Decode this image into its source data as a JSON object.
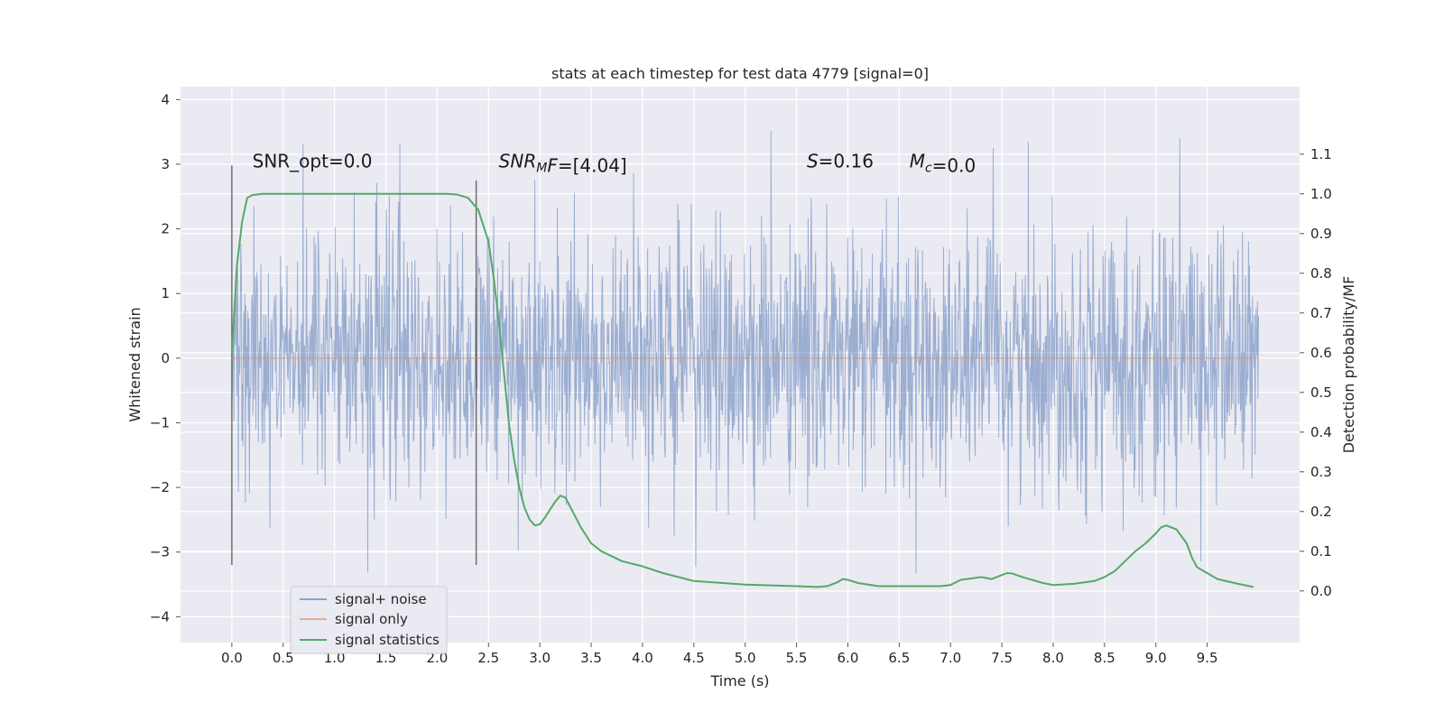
{
  "chart_data": {
    "type": "line",
    "title": "stats at each timestep for test data 4779 [signal=0]",
    "xlabel": "Time (s)",
    "ylabel": "Whitened strain",
    "y2label": "Detection probability/MF",
    "xlim": [
      -0.5,
      10.4
    ],
    "ylim": [
      -4.4,
      4.2
    ],
    "y2lim": [
      -0.13,
      1.27
    ],
    "x_ticks": [
      0.0,
      0.5,
      1.0,
      1.5,
      2.0,
      2.5,
      3.0,
      3.5,
      4.0,
      4.5,
      5.0,
      5.5,
      6.0,
      6.5,
      7.0,
      7.5,
      8.0,
      8.5,
      9.0,
      9.5
    ],
    "x_tick_labels": [
      "0.0",
      "0.5",
      "1.0",
      "1.5",
      "2.0",
      "2.5",
      "3.0",
      "3.5",
      "4.0",
      "4.5",
      "5.0",
      "5.5",
      "6.0",
      "6.5",
      "7.0",
      "7.5",
      "8.0",
      "8.5",
      "9.0",
      "9.5"
    ],
    "y_ticks": [
      4,
      3,
      2,
      1,
      0,
      -1,
      -2,
      -3,
      -4
    ],
    "y_tick_labels": [
      "4",
      "3",
      "2",
      "1",
      "0",
      "−1",
      "−2",
      "−3",
      "−4"
    ],
    "y2_ticks": [
      1.1,
      1.0,
      0.9,
      0.8,
      0.7,
      0.6,
      0.5,
      0.4,
      0.3,
      0.2,
      0.1,
      0.0
    ],
    "y2_tick_labels": [
      "1.1",
      "1.0",
      "0.9",
      "0.8",
      "0.7",
      "0.6",
      "0.5",
      "0.4",
      "0.3",
      "0.2",
      "0.1",
      "0.0"
    ],
    "grid": true,
    "legend_position": "lower-left",
    "annotations": [
      {
        "x": 0.2,
        "y": 2.95,
        "parts": [
          {
            "t": "SNR_opt=0.0"
          }
        ]
      },
      {
        "x": 2.6,
        "y": 2.95,
        "parts": [
          {
            "t": "SNR",
            "i": true
          },
          {
            "t": "M",
            "i": true,
            "sub": true
          },
          {
            "t": "F",
            "i": true
          },
          {
            "t": "=[4.04]"
          }
        ]
      },
      {
        "x": 5.6,
        "y": 2.95,
        "parts": [
          {
            "t": "S",
            "i": true
          },
          {
            "t": "=0.16"
          }
        ]
      },
      {
        "x": 6.6,
        "y": 2.95,
        "parts": [
          {
            "t": "M",
            "i": true
          },
          {
            "t": "c",
            "i": true,
            "sub": true
          },
          {
            "t": "=0.0"
          }
        ]
      }
    ],
    "vertical_markers": [
      {
        "x": 0.0,
        "y_range": [
          -3.2,
          2.98
        ]
      },
      {
        "x": 2.38,
        "y_range": [
          -3.2,
          2.75
        ]
      }
    ],
    "series": [
      {
        "name": "signal+ noise",
        "color": "#4c72b0",
        "x_range": [
          0.0,
          10.0
        ],
        "samples": 2048,
        "sigma": 1.0,
        "spike_max": 3.8,
        "spike_min": -4.05
      },
      {
        "name": "signal only",
        "color": "#dd8452",
        "x": [
          0.0,
          10.0
        ],
        "y": [
          0.0,
          0.0
        ]
      },
      {
        "name": "signal statistics",
        "color": "#55a868",
        "axis": "right",
        "x": [
          0.0,
          0.05,
          0.1,
          0.15,
          0.2,
          0.3,
          0.5,
          1.0,
          1.5,
          2.0,
          2.1,
          2.2,
          2.3,
          2.4,
          2.5,
          2.55,
          2.6,
          2.65,
          2.7,
          2.75,
          2.8,
          2.85,
          2.9,
          2.95,
          3.0,
          3.05,
          3.1,
          3.15,
          3.2,
          3.25,
          3.3,
          3.4,
          3.5,
          3.6,
          3.8,
          4.0,
          4.2,
          4.5,
          5.0,
          5.5,
          5.7,
          5.8,
          5.9,
          5.95,
          6.0,
          6.1,
          6.3,
          6.6,
          6.9,
          7.0,
          7.1,
          7.3,
          7.4,
          7.5,
          7.55,
          7.6,
          7.7,
          7.9,
          8.0,
          8.2,
          8.4,
          8.5,
          8.6,
          8.7,
          8.8,
          8.9,
          9.0,
          9.05,
          9.1,
          9.2,
          9.3,
          9.35,
          9.4,
          9.6,
          9.8,
          9.95
        ],
        "y": [
          0.6,
          0.82,
          0.93,
          0.99,
          0.997,
          1.0,
          1.0,
          1.0,
          1.0,
          1.0,
          1.0,
          0.998,
          0.99,
          0.96,
          0.88,
          0.79,
          0.68,
          0.55,
          0.42,
          0.33,
          0.26,
          0.21,
          0.18,
          0.165,
          0.168,
          0.185,
          0.205,
          0.225,
          0.24,
          0.235,
          0.21,
          0.16,
          0.12,
          0.1,
          0.075,
          0.062,
          0.045,
          0.025,
          0.016,
          0.012,
          0.01,
          0.012,
          0.022,
          0.03,
          0.028,
          0.02,
          0.012,
          0.012,
          0.012,
          0.015,
          0.028,
          0.035,
          0.03,
          0.04,
          0.045,
          0.044,
          0.035,
          0.02,
          0.015,
          0.018,
          0.025,
          0.035,
          0.05,
          0.075,
          0.1,
          0.12,
          0.145,
          0.16,
          0.165,
          0.155,
          0.12,
          0.085,
          0.06,
          0.03,
          0.018,
          0.01
        ]
      }
    ]
  }
}
